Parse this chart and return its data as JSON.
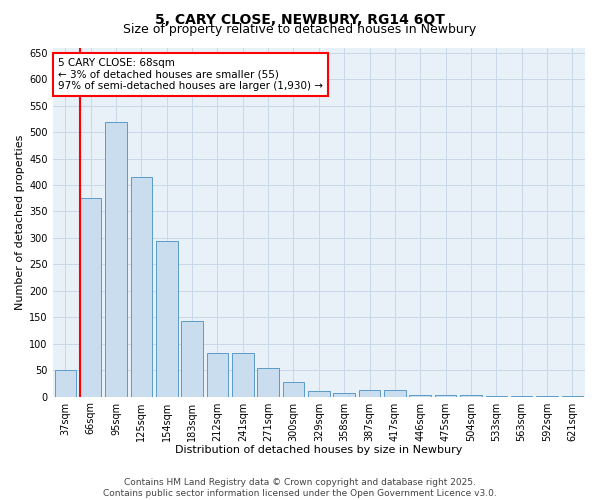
{
  "title": "5, CARY CLOSE, NEWBURY, RG14 6QT",
  "subtitle": "Size of property relative to detached houses in Newbury",
  "xlabel": "Distribution of detached houses by size in Newbury",
  "ylabel": "Number of detached properties",
  "categories": [
    "37sqm",
    "66sqm",
    "95sqm",
    "125sqm",
    "154sqm",
    "183sqm",
    "212sqm",
    "241sqm",
    "271sqm",
    "300sqm",
    "329sqm",
    "358sqm",
    "387sqm",
    "417sqm",
    "446sqm",
    "475sqm",
    "504sqm",
    "533sqm",
    "563sqm",
    "592sqm",
    "621sqm"
  ],
  "values": [
    50,
    375,
    520,
    415,
    295,
    143,
    83,
    83,
    55,
    28,
    10,
    7,
    12,
    12,
    3,
    3,
    3,
    2,
    2,
    2,
    2
  ],
  "bar_color": "#c9ddef",
  "bar_edge_color": "#5b9bc8",
  "red_line_index": 1,
  "annotation_text": "5 CARY CLOSE: 68sqm\n← 3% of detached houses are smaller (55)\n97% of semi-detached houses are larger (1,930) →",
  "annotation_box_color": "white",
  "annotation_box_edge_color": "red",
  "ylim": [
    0,
    660
  ],
  "yticks": [
    0,
    50,
    100,
    150,
    200,
    250,
    300,
    350,
    400,
    450,
    500,
    550,
    600,
    650
  ],
  "grid_color": "#c8d8e8",
  "background_color": "#e8f0f8",
  "footer_line1": "Contains HM Land Registry data © Crown copyright and database right 2025.",
  "footer_line2": "Contains public sector information licensed under the Open Government Licence v3.0.",
  "title_fontsize": 10,
  "subtitle_fontsize": 9,
  "axis_label_fontsize": 8,
  "tick_fontsize": 7,
  "annotation_fontsize": 7.5,
  "footer_fontsize": 6.5
}
